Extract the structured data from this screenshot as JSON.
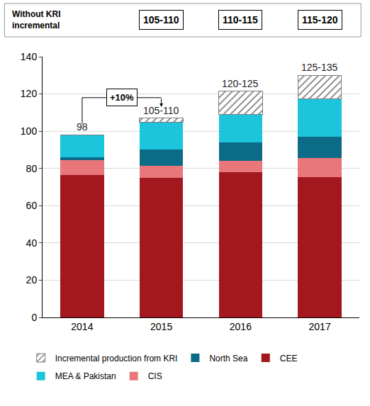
{
  "chart_data": {
    "type": "bar",
    "stacked": true,
    "grid": true,
    "categories": [
      "2014",
      "2015",
      "2016",
      "2017"
    ],
    "series": [
      {
        "name": "CEE",
        "color": "#a3171e",
        "values": [
          76.5,
          75,
          78,
          75.5
        ]
      },
      {
        "name": "CIS",
        "color": "#e8767a",
        "values": [
          8,
          6.5,
          6,
          10
        ]
      },
      {
        "name": "North Sea",
        "color": "#0c6b87",
        "values": [
          1.5,
          8.5,
          10,
          11.5
        ]
      },
      {
        "name": "MEA & Pakistan",
        "color": "#1cc4dc",
        "values": [
          12,
          15,
          15,
          20.5
        ]
      },
      {
        "name": "Incremental production from KRI",
        "color": "#7f7f7f",
        "marker": "hatched",
        "values": [
          0,
          2,
          12.5,
          12.5
        ]
      }
    ],
    "ylim": [
      0,
      140
    ],
    "yticks": [
      0,
      20,
      40,
      60,
      80,
      100,
      120,
      140
    ],
    "annotations": {
      "totals": [
        "98",
        "105-110",
        "120-125",
        "125-135"
      ],
      "growth": "+10%",
      "without_kri": {
        "label": [
          "Without KRI",
          "incremental"
        ],
        "values": [
          "105-110",
          "110-115",
          "115-120"
        ]
      }
    }
  }
}
